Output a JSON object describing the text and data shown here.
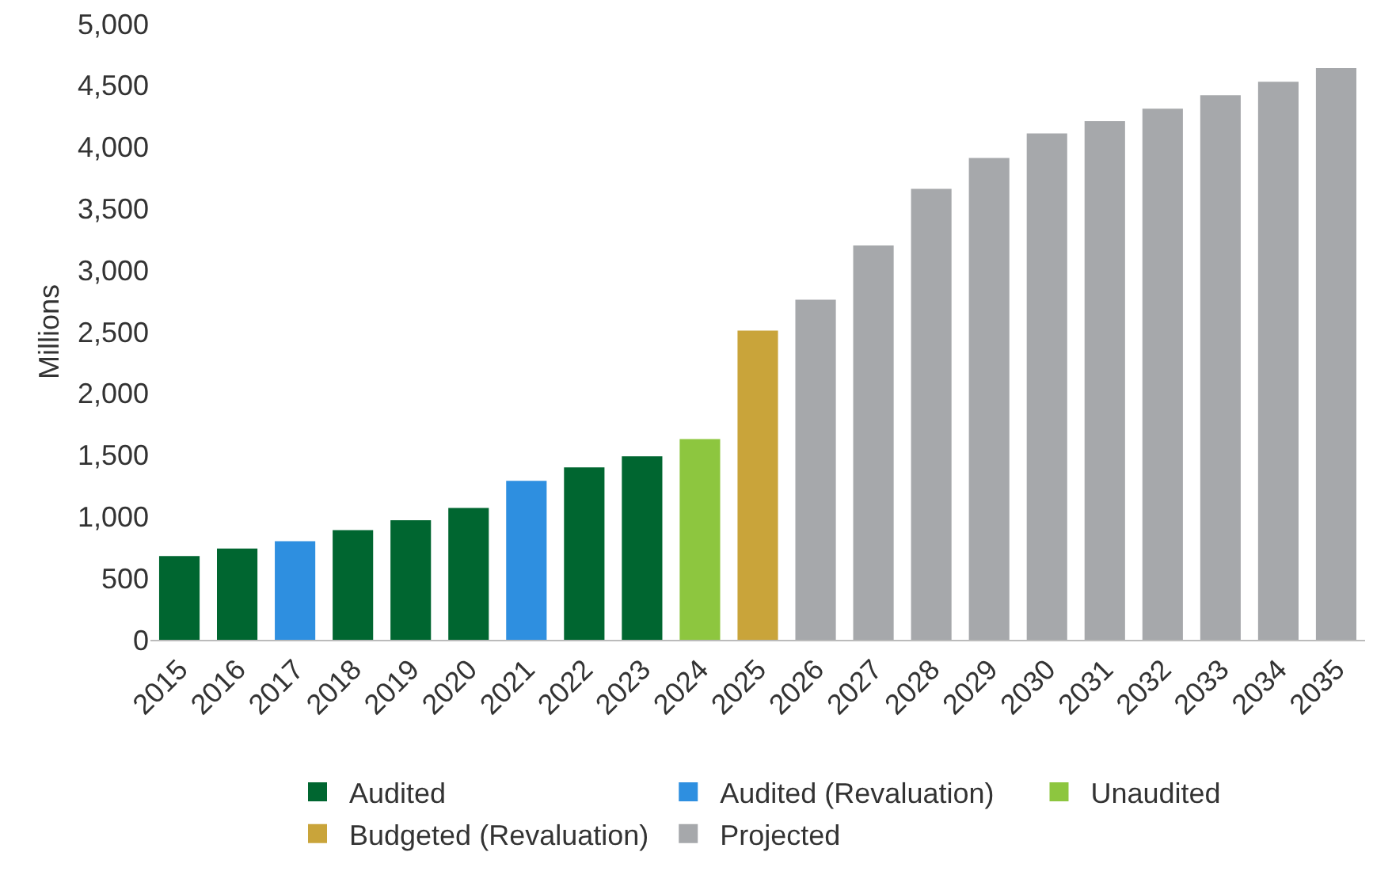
{
  "chart_data": {
    "type": "bar",
    "ylabel": "Millions",
    "categories": [
      "2015",
      "2016",
      "2017",
      "2018",
      "2019",
      "2020",
      "2021",
      "2022",
      "2023",
      "2024",
      "2025",
      "2026",
      "2027",
      "2028",
      "2029",
      "2030",
      "2031",
      "2032",
      "2033",
      "2034",
      "2035"
    ],
    "series": [
      {
        "name": "Audited",
        "color": "#006630",
        "values": [
          680,
          740,
          null,
          890,
          970,
          1070,
          null,
          1400,
          1490,
          null,
          null,
          null,
          null,
          null,
          null,
          null,
          null,
          null,
          null,
          null,
          null
        ]
      },
      {
        "name": "Audited (Revaluation)",
        "color": "#2e8fe0",
        "values": [
          null,
          null,
          800,
          null,
          null,
          null,
          1290,
          null,
          null,
          null,
          null,
          null,
          null,
          null,
          null,
          null,
          null,
          null,
          null,
          null,
          null
        ]
      },
      {
        "name": "Unaudited",
        "color": "#8dc63f",
        "values": [
          null,
          null,
          null,
          null,
          null,
          null,
          null,
          null,
          null,
          1630,
          null,
          null,
          null,
          null,
          null,
          null,
          null,
          null,
          null,
          null,
          null
        ]
      },
      {
        "name": "Budgeted (Revaluation)",
        "color": "#c9a43a",
        "values": [
          null,
          null,
          null,
          null,
          null,
          null,
          null,
          null,
          null,
          null,
          2510,
          null,
          null,
          null,
          null,
          null,
          null,
          null,
          null,
          null,
          null
        ]
      },
      {
        "name": "Projected",
        "color": "#a6a8ab",
        "values": [
          null,
          null,
          null,
          null,
          null,
          null,
          null,
          null,
          null,
          null,
          null,
          2760,
          3200,
          3660,
          3910,
          4110,
          4210,
          4310,
          4420,
          4530,
          4640
        ]
      }
    ],
    "ylim": [
      0,
      5000
    ],
    "yticks": [
      {
        "value": 0,
        "label": "0"
      },
      {
        "value": 500,
        "label": "500"
      },
      {
        "value": 1000,
        "label": "1,000"
      },
      {
        "value": 1500,
        "label": "1,500"
      },
      {
        "value": 2000,
        "label": "2,000"
      },
      {
        "value": 2500,
        "label": "2,500"
      },
      {
        "value": 3000,
        "label": "3,000"
      },
      {
        "value": 3500,
        "label": "3,500"
      },
      {
        "value": 4000,
        "label": "4,000"
      },
      {
        "value": 4500,
        "label": "4,500"
      },
      {
        "value": 5000,
        "label": "5,000"
      }
    ],
    "grid": false,
    "legend": "bottom"
  }
}
